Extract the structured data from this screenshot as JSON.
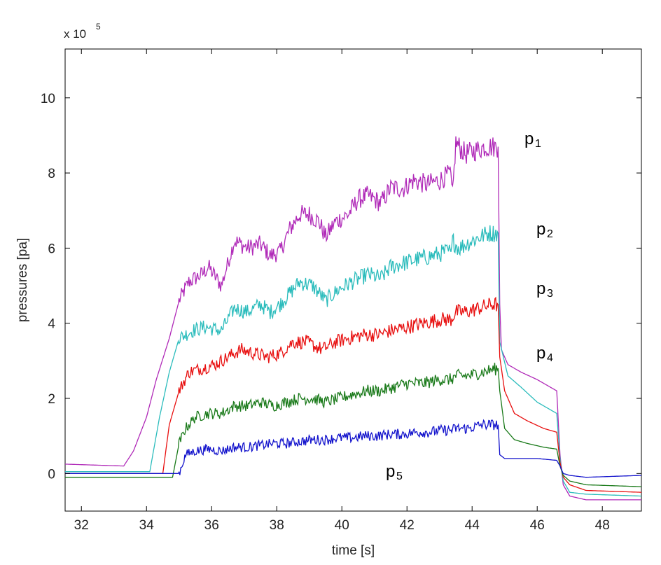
{
  "chart_data": {
    "type": "line",
    "xlabel": "time [s]",
    "ylabel": "pressures [pa]",
    "y_multiplier": {
      "base": "x 10",
      "exponent": "5"
    },
    "xlim": [
      31.5,
      49.2
    ],
    "ylim": [
      -1.0,
      11.3
    ],
    "xticks": [
      32,
      34,
      36,
      38,
      40,
      42,
      44,
      46,
      48
    ],
    "yticks": [
      0,
      2,
      4,
      6,
      8,
      10
    ],
    "grid": false,
    "legend": "none",
    "series": [
      {
        "name": "p",
        "subscript": "1",
        "color": "#b02ab8",
        "points": [
          [
            31.5,
            0.25
          ],
          [
            33.3,
            0.2
          ],
          [
            33.6,
            0.6
          ],
          [
            34.0,
            1.5
          ],
          [
            34.3,
            2.5
          ],
          [
            34.7,
            3.6
          ],
          [
            35.0,
            4.6
          ],
          [
            35.3,
            5.1
          ],
          [
            35.7,
            5.3
          ],
          [
            35.9,
            5.5
          ],
          [
            36.3,
            5.0
          ],
          [
            36.7,
            6.2
          ],
          [
            37.1,
            6.0
          ],
          [
            37.5,
            6.1
          ],
          [
            37.8,
            5.8
          ],
          [
            38.1,
            5.9
          ],
          [
            38.4,
            6.5
          ],
          [
            38.7,
            6.9
          ],
          [
            39.0,
            6.9
          ],
          [
            39.3,
            6.7
          ],
          [
            39.5,
            6.3
          ],
          [
            39.8,
            6.7
          ],
          [
            40.2,
            6.9
          ],
          [
            40.5,
            7.3
          ],
          [
            40.8,
            7.4
          ],
          [
            41.2,
            7.2
          ],
          [
            41.5,
            7.6
          ],
          [
            41.9,
            7.6
          ],
          [
            42.2,
            7.8
          ],
          [
            42.6,
            7.7
          ],
          [
            43.0,
            7.8
          ],
          [
            43.35,
            8.0
          ],
          [
            43.4,
            7.4
          ],
          [
            43.5,
            8.8
          ],
          [
            43.8,
            8.5
          ],
          [
            44.1,
            8.6
          ],
          [
            44.4,
            8.7
          ],
          [
            44.8,
            8.7
          ],
          [
            44.85,
            4.5
          ],
          [
            44.9,
            3.3
          ],
          [
            45.1,
            2.9
          ],
          [
            45.5,
            2.7
          ],
          [
            46.0,
            2.5
          ],
          [
            46.6,
            2.2
          ],
          [
            46.7,
            0.5
          ],
          [
            46.8,
            -0.3
          ],
          [
            47.0,
            -0.6
          ],
          [
            47.5,
            -0.7
          ],
          [
            49.2,
            -0.7
          ]
        ]
      },
      {
        "name": "p",
        "subscript": "2",
        "color": "#2bbcbc",
        "points": [
          [
            31.5,
            0.05
          ],
          [
            34.1,
            0.05
          ],
          [
            34.4,
            1.5
          ],
          [
            34.7,
            2.7
          ],
          [
            35.0,
            3.6
          ],
          [
            35.4,
            3.8
          ],
          [
            35.8,
            3.9
          ],
          [
            36.3,
            3.8
          ],
          [
            36.7,
            4.4
          ],
          [
            37.1,
            4.3
          ],
          [
            37.5,
            4.5
          ],
          [
            37.8,
            4.3
          ],
          [
            38.1,
            4.5
          ],
          [
            38.4,
            4.8
          ],
          [
            38.7,
            5.1
          ],
          [
            39.1,
            5.0
          ],
          [
            39.5,
            4.6
          ],
          [
            39.9,
            4.9
          ],
          [
            40.3,
            5.1
          ],
          [
            40.8,
            5.3
          ],
          [
            41.2,
            5.2
          ],
          [
            41.5,
            5.5
          ],
          [
            41.9,
            5.6
          ],
          [
            42.3,
            5.7
          ],
          [
            42.8,
            5.8
          ],
          [
            43.2,
            5.9
          ],
          [
            43.35,
            5.9
          ],
          [
            43.4,
            6.2
          ],
          [
            43.6,
            6.0
          ],
          [
            44.0,
            6.2
          ],
          [
            44.5,
            6.4
          ],
          [
            44.8,
            6.4
          ],
          [
            44.85,
            3.5
          ],
          [
            45.1,
            2.6
          ],
          [
            45.5,
            2.3
          ],
          [
            46.0,
            1.9
          ],
          [
            46.6,
            1.6
          ],
          [
            46.7,
            0.4
          ],
          [
            46.8,
            -0.2
          ],
          [
            47.0,
            -0.5
          ],
          [
            47.5,
            -0.55
          ],
          [
            49.2,
            -0.6
          ]
        ]
      },
      {
        "name": "p",
        "subscript": "3",
        "color": "#e81010",
        "points": [
          [
            31.5,
            0.0
          ],
          [
            34.5,
            0.0
          ],
          [
            34.7,
            1.3
          ],
          [
            35.0,
            2.2
          ],
          [
            35.3,
            2.7
          ],
          [
            35.7,
            2.8
          ],
          [
            36.1,
            2.9
          ],
          [
            36.5,
            3.1
          ],
          [
            36.9,
            3.3
          ],
          [
            37.3,
            3.2
          ],
          [
            37.7,
            3.1
          ],
          [
            38.1,
            3.2
          ],
          [
            38.5,
            3.5
          ],
          [
            38.9,
            3.5
          ],
          [
            39.4,
            3.3
          ],
          [
            39.8,
            3.5
          ],
          [
            40.2,
            3.6
          ],
          [
            40.7,
            3.7
          ],
          [
            41.1,
            3.7
          ],
          [
            41.5,
            3.8
          ],
          [
            42.0,
            3.9
          ],
          [
            42.5,
            4.0
          ],
          [
            43.0,
            4.1
          ],
          [
            43.35,
            4.1
          ],
          [
            43.5,
            4.3
          ],
          [
            43.8,
            4.3
          ],
          [
            44.2,
            4.4
          ],
          [
            44.6,
            4.5
          ],
          [
            44.8,
            4.5
          ],
          [
            44.85,
            3.1
          ],
          [
            45.0,
            2.2
          ],
          [
            45.3,
            1.6
          ],
          [
            45.7,
            1.4
          ],
          [
            46.2,
            1.2
          ],
          [
            46.6,
            1.1
          ],
          [
            46.7,
            0.3
          ],
          [
            46.8,
            -0.1
          ],
          [
            47.0,
            -0.3
          ],
          [
            47.5,
            -0.45
          ],
          [
            49.2,
            -0.5
          ]
        ]
      },
      {
        "name": "p",
        "subscript": "4",
        "color": "#1a7a1a",
        "points": [
          [
            31.5,
            -0.1
          ],
          [
            34.8,
            -0.1
          ],
          [
            35.0,
            0.8
          ],
          [
            35.2,
            1.2
          ],
          [
            35.5,
            1.5
          ],
          [
            35.9,
            1.6
          ],
          [
            36.3,
            1.6
          ],
          [
            36.7,
            1.8
          ],
          [
            37.1,
            1.8
          ],
          [
            37.5,
            1.9
          ],
          [
            37.9,
            1.8
          ],
          [
            38.3,
            1.9
          ],
          [
            38.7,
            2.0
          ],
          [
            39.1,
            2.0
          ],
          [
            39.5,
            1.9
          ],
          [
            39.9,
            2.0
          ],
          [
            40.3,
            2.1
          ],
          [
            40.8,
            2.2
          ],
          [
            41.2,
            2.2
          ],
          [
            41.6,
            2.3
          ],
          [
            42.0,
            2.4
          ],
          [
            42.5,
            2.4
          ],
          [
            43.0,
            2.5
          ],
          [
            43.35,
            2.5
          ],
          [
            43.5,
            2.6
          ],
          [
            43.9,
            2.6
          ],
          [
            44.3,
            2.7
          ],
          [
            44.8,
            2.8
          ],
          [
            44.85,
            2.2
          ],
          [
            45.0,
            1.2
          ],
          [
            45.3,
            0.9
          ],
          [
            45.7,
            0.8
          ],
          [
            46.2,
            0.7
          ],
          [
            46.6,
            0.65
          ],
          [
            46.7,
            0.2
          ],
          [
            46.8,
            -0.05
          ],
          [
            47.0,
            -0.2
          ],
          [
            47.5,
            -0.3
          ],
          [
            49.2,
            -0.35
          ]
        ]
      },
      {
        "name": "p",
        "subscript": "5",
        "color": "#1212cc",
        "points": [
          [
            31.5,
            0.0
          ],
          [
            35.0,
            0.0
          ],
          [
            35.2,
            0.5
          ],
          [
            35.5,
            0.6
          ],
          [
            35.9,
            0.65
          ],
          [
            36.3,
            0.6
          ],
          [
            36.7,
            0.7
          ],
          [
            37.1,
            0.7
          ],
          [
            37.5,
            0.75
          ],
          [
            37.9,
            0.8
          ],
          [
            38.3,
            0.8
          ],
          [
            38.7,
            0.85
          ],
          [
            39.1,
            0.9
          ],
          [
            39.5,
            0.9
          ],
          [
            39.9,
            0.95
          ],
          [
            40.3,
            0.95
          ],
          [
            40.7,
            1.0
          ],
          [
            41.1,
            1.0
          ],
          [
            41.5,
            1.05
          ],
          [
            41.9,
            1.05
          ],
          [
            42.3,
            1.1
          ],
          [
            42.7,
            1.1
          ],
          [
            43.0,
            1.15
          ],
          [
            43.35,
            1.15
          ],
          [
            43.5,
            1.2
          ],
          [
            43.9,
            1.2
          ],
          [
            44.3,
            1.3
          ],
          [
            44.8,
            1.3
          ],
          [
            44.85,
            0.5
          ],
          [
            45.0,
            0.4
          ],
          [
            45.5,
            0.4
          ],
          [
            46.0,
            0.4
          ],
          [
            46.6,
            0.35
          ],
          [
            46.7,
            0.2
          ],
          [
            46.8,
            0.0
          ],
          [
            47.0,
            -0.05
          ],
          [
            47.5,
            -0.1
          ],
          [
            49.2,
            -0.05
          ]
        ]
      }
    ]
  }
}
